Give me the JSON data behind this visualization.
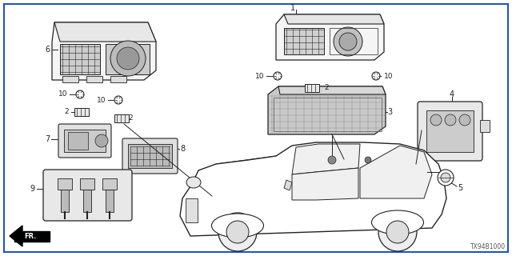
{
  "diagram_code": "TX94B1000",
  "bg_color": "#ffffff",
  "line_color": "#222222",
  "border_color": "#2255bb",
  "figsize": [
    6.4,
    3.2
  ],
  "dpi": 100
}
